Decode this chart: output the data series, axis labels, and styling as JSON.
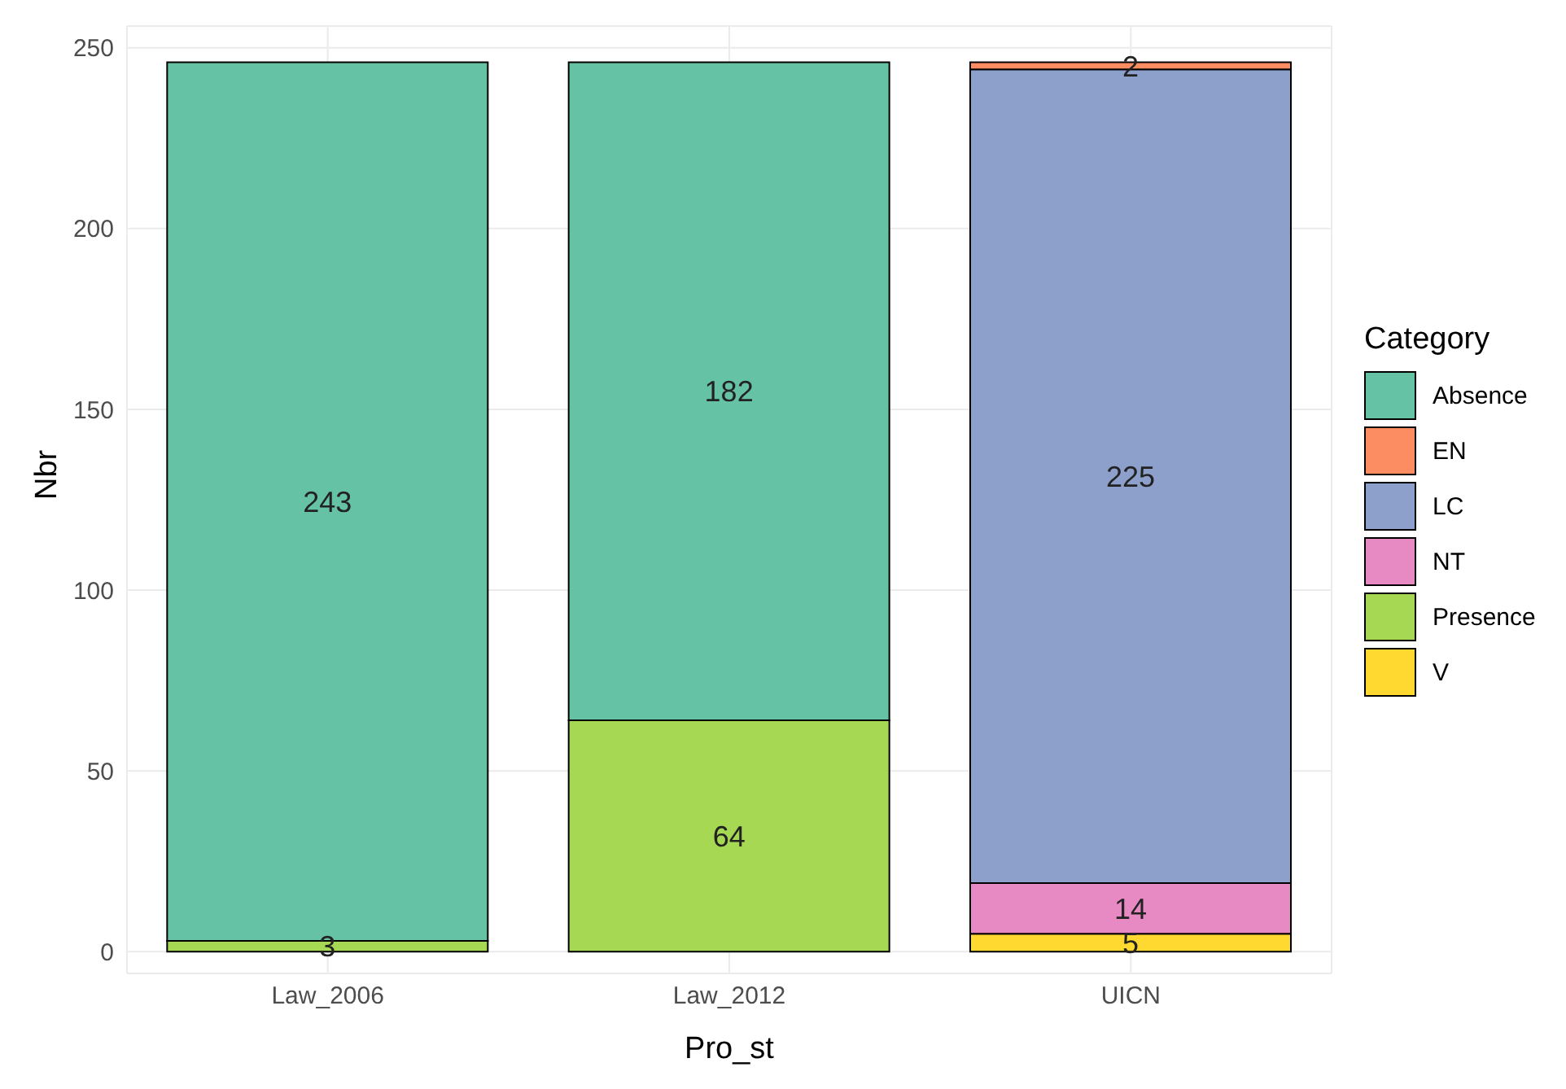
{
  "chart_data": {
    "type": "bar",
    "stacked": true,
    "xlabel": "Pro_st",
    "ylabel": "Nbr",
    "legend_title": "Category",
    "legend": "right",
    "grid": true,
    "data_labels": true,
    "categories": [
      "Law_2006",
      "Law_2012",
      "UICN"
    ],
    "ylim": [
      -6,
      256
    ],
    "yticks": [
      0,
      50,
      100,
      150,
      200,
      250
    ],
    "series": [
      {
        "name": "V",
        "color": "#ffd92f",
        "values": [
          null,
          null,
          5
        ]
      },
      {
        "name": "Presence",
        "color": "#a6d854",
        "values": [
          3,
          64,
          null
        ]
      },
      {
        "name": "NT",
        "color": "#e78ac3",
        "values": [
          null,
          null,
          14
        ]
      },
      {
        "name": "LC",
        "color": "#8da0cb",
        "values": [
          null,
          null,
          225
        ]
      },
      {
        "name": "EN",
        "color": "#fc8d62",
        "values": [
          null,
          null,
          2
        ]
      },
      {
        "name": "Absence",
        "color": "#66c2a5",
        "values": [
          243,
          182,
          null
        ]
      }
    ]
  }
}
